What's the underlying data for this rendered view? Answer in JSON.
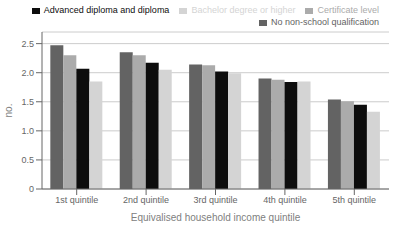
{
  "chart_data": {
    "type": "bar",
    "xlabel": "Equivalised household income quintile",
    "ylabel": "no.",
    "categories": [
      "1st quintile",
      "2nd quintile",
      "3rd quintile",
      "4th quintile",
      "5th quintile"
    ],
    "series": [
      {
        "name": "No non-school qualification",
        "color": "#636363",
        "values": [
          2.47,
          2.35,
          2.14,
          1.9,
          1.54
        ]
      },
      {
        "name": "Certificate level",
        "color": "#ababab",
        "values": [
          2.3,
          2.3,
          2.13,
          1.88,
          1.51
        ]
      },
      {
        "name": "Advanced diploma and diploma",
        "color": "#0d0d0d",
        "values": [
          2.07,
          2.17,
          2.02,
          1.84,
          1.45
        ]
      },
      {
        "name": "Bachelor degree or higher",
        "color": "#d4d4d4",
        "values": [
          1.85,
          2.05,
          1.99,
          1.85,
          1.33
        ]
      }
    ],
    "ylim": [
      0,
      2.7
    ],
    "yticks": [
      0,
      0.5,
      {
        "value": 1,
        "label": "1.0"
      },
      1.5,
      {
        "value": 2,
        "label": "2.0"
      },
      2.5
    ],
    "grid": true,
    "legend": "upper right"
  }
}
